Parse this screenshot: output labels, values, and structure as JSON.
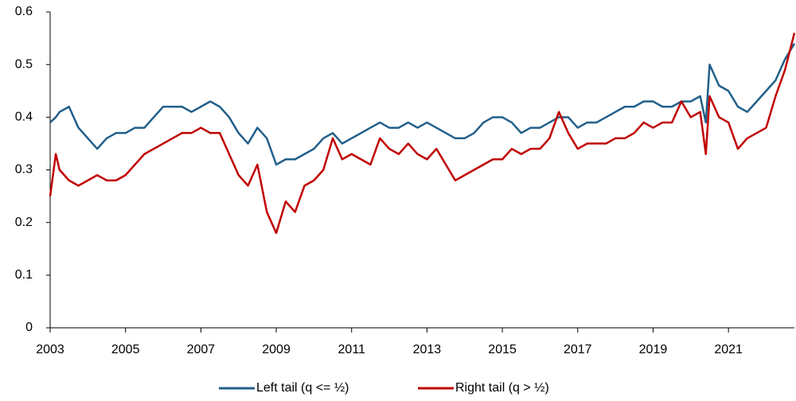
{
  "chart_data": {
    "type": "line",
    "x": [
      2003,
      2003.15,
      2003.25,
      2003.5,
      2003.75,
      2004,
      2004.25,
      2004.5,
      2004.75,
      2005,
      2005.25,
      2005.5,
      2005.75,
      2006,
      2006.25,
      2006.5,
      2006.75,
      2007,
      2007.25,
      2007.5,
      2007.75,
      2008,
      2008.25,
      2008.5,
      2008.75,
      2009,
      2009.25,
      2009.5,
      2009.75,
      2010,
      2010.25,
      2010.5,
      2010.75,
      2011,
      2011.25,
      2011.5,
      2011.75,
      2012,
      2012.25,
      2012.5,
      2012.75,
      2013,
      2013.25,
      2013.5,
      2013.75,
      2014,
      2014.25,
      2014.5,
      2014.75,
      2015,
      2015.25,
      2015.5,
      2015.75,
      2016,
      2016.25,
      2016.5,
      2016.75,
      2017,
      2017.25,
      2017.5,
      2017.75,
      2018,
      2018.25,
      2018.5,
      2018.75,
      2019,
      2019.25,
      2019.5,
      2019.75,
      2020,
      2020.25,
      2020.4,
      2020.5,
      2020.75,
      2021,
      2021.25,
      2021.5,
      2021.75,
      2022,
      2022.25,
      2022.5,
      2022.75
    ],
    "series": [
      {
        "name": "Left tail (q <= ½)",
        "color": "#215f8a",
        "values": [
          0.39,
          0.4,
          0.41,
          0.42,
          0.38,
          0.36,
          0.34,
          0.36,
          0.37,
          0.37,
          0.38,
          0.38,
          0.4,
          0.42,
          0.42,
          0.42,
          0.41,
          0.42,
          0.43,
          0.42,
          0.4,
          0.37,
          0.35,
          0.38,
          0.36,
          0.31,
          0.32,
          0.32,
          0.33,
          0.34,
          0.36,
          0.37,
          0.35,
          0.36,
          0.37,
          0.38,
          0.39,
          0.38,
          0.38,
          0.39,
          0.38,
          0.39,
          0.38,
          0.37,
          0.36,
          0.36,
          0.37,
          0.39,
          0.4,
          0.4,
          0.39,
          0.37,
          0.38,
          0.38,
          0.39,
          0.4,
          0.4,
          0.38,
          0.39,
          0.39,
          0.4,
          0.41,
          0.42,
          0.42,
          0.43,
          0.43,
          0.42,
          0.42,
          0.43,
          0.43,
          0.44,
          0.39,
          0.5,
          0.46,
          0.45,
          0.42,
          0.41,
          0.43,
          0.45,
          0.47,
          0.51,
          0.54
        ]
      },
      {
        "name": "Right tail (q > ½)",
        "color": "#c00000",
        "values": [
          0.25,
          0.33,
          0.3,
          0.28,
          0.27,
          0.28,
          0.29,
          0.28,
          0.28,
          0.29,
          0.31,
          0.33,
          0.34,
          0.35,
          0.36,
          0.37,
          0.37,
          0.38,
          0.37,
          0.37,
          0.33,
          0.29,
          0.27,
          0.31,
          0.22,
          0.18,
          0.24,
          0.22,
          0.27,
          0.28,
          0.3,
          0.36,
          0.32,
          0.33,
          0.32,
          0.31,
          0.36,
          0.34,
          0.33,
          0.35,
          0.33,
          0.32,
          0.34,
          0.31,
          0.28,
          0.29,
          0.3,
          0.31,
          0.32,
          0.32,
          0.34,
          0.33,
          0.34,
          0.34,
          0.36,
          0.41,
          0.37,
          0.34,
          0.35,
          0.35,
          0.35,
          0.36,
          0.36,
          0.37,
          0.39,
          0.38,
          0.39,
          0.39,
          0.43,
          0.4,
          0.41,
          0.33,
          0.44,
          0.4,
          0.39,
          0.34,
          0.36,
          0.37,
          0.38,
          0.44,
          0.49,
          0.56
        ]
      }
    ],
    "xlim": [
      2003,
      2022.75
    ],
    "xticks": [
      2003,
      2005,
      2007,
      2009,
      2011,
      2013,
      2015,
      2017,
      2019,
      2021
    ],
    "ylim": [
      0,
      0.6
    ],
    "yticks": [
      0,
      0.1,
      0.2,
      0.3,
      0.4,
      0.5,
      0.6
    ],
    "grid": false,
    "legend": "bottom"
  }
}
